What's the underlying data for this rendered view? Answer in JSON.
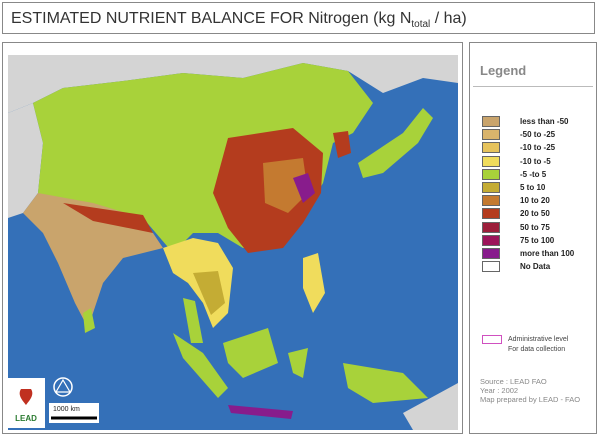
{
  "header": {
    "title": "ESTIMATED NUTRIENT BALANCE FOR Nitrogen (kg N",
    "subscript": "total",
    "suffix": " / ha)"
  },
  "legend": {
    "title": "Legend",
    "items": [
      {
        "label": "less than -50",
        "color": "#c9a46c"
      },
      {
        "label": "-50 to -25",
        "color": "#d9b46c"
      },
      {
        "label": "-10 to -25",
        "color": "#e6c35c"
      },
      {
        "label": "-10 to -5",
        "color": "#f0dc5c"
      },
      {
        "label": "-5 -to 5",
        "color": "#a8d23a"
      },
      {
        "label": "5 to 10",
        "color": "#c4ac34"
      },
      {
        "label": "10 to 20",
        "color": "#c47a30"
      },
      {
        "label": "20 to 50",
        "color": "#b43c1e"
      },
      {
        "label": "50 to 75",
        "color": "#9c1e3a"
      },
      {
        "label": "75 to 100",
        "color": "#9c145a"
      },
      {
        "label": "more than 100",
        "color": "#881c8c"
      },
      {
        "label": "No Data",
        "color": "#ffffff"
      }
    ],
    "admin": [
      "Administrative level",
      "For data collection"
    ]
  },
  "source": [
    "Source : LEAD FAO",
    "Year : 2002",
    "Map prepared by LEAD - FAO"
  ],
  "map": {
    "scale_label": "1000 km",
    "logo": "LEAD"
  }
}
